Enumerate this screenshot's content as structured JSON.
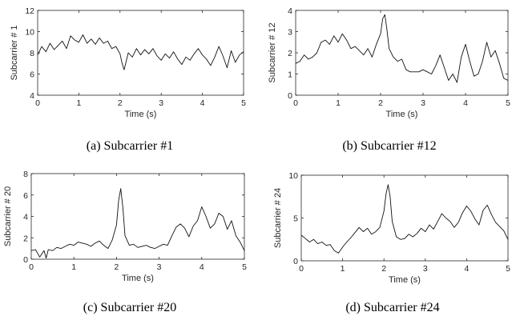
{
  "chart_data": [
    {
      "type": "line",
      "caption": "(a) Subcarrier #1",
      "xlabel": "Time (s)",
      "ylabel": "Subcarrier # 1",
      "xlim": [
        0,
        5
      ],
      "ylim": [
        4,
        12
      ],
      "xticks": [
        0,
        1,
        2,
        3,
        4,
        5
      ],
      "yticks": [
        4,
        6,
        8,
        10,
        12
      ],
      "series": [
        {
          "x": [
            0,
            0.1,
            0.2,
            0.3,
            0.4,
            0.5,
            0.6,
            0.7,
            0.8,
            0.9,
            1.0,
            1.1,
            1.2,
            1.3,
            1.4,
            1.5,
            1.6,
            1.7,
            1.8,
            1.9,
            2.0,
            2.05,
            2.1,
            2.15,
            2.2,
            2.3,
            2.4,
            2.5,
            2.6,
            2.7,
            2.8,
            2.9,
            3.0,
            3.1,
            3.2,
            3.3,
            3.4,
            3.5,
            3.6,
            3.7,
            3.8,
            3.9,
            4.0,
            4.1,
            4.2,
            4.3,
            4.4,
            4.5,
            4.6,
            4.7,
            4.8,
            4.9,
            5.0
          ],
          "y": [
            7.8,
            8.6,
            8.1,
            8.9,
            8.3,
            8.7,
            9.1,
            8.4,
            9.6,
            9.2,
            9.0,
            9.7,
            8.9,
            9.3,
            8.8,
            9.4,
            8.9,
            9.1,
            8.4,
            8.6,
            7.9,
            7.0,
            6.4,
            7.2,
            8.0,
            7.6,
            8.4,
            7.8,
            8.3,
            7.9,
            8.4,
            7.7,
            7.3,
            7.9,
            7.5,
            8.1,
            7.4,
            6.9,
            7.6,
            7.3,
            7.9,
            8.4,
            7.8,
            7.4,
            6.8,
            7.6,
            8.6,
            7.7,
            6.6,
            8.2,
            7.1,
            7.8,
            8.1
          ]
        }
      ]
    },
    {
      "type": "line",
      "caption": "(b) Subcarrier #12",
      "xlabel": "Time (s)",
      "ylabel": "Subcarrier # 12",
      "xlim": [
        0,
        5
      ],
      "ylim": [
        0,
        4
      ],
      "xticks": [
        0,
        1,
        2,
        3,
        4,
        5
      ],
      "yticks": [
        0,
        1,
        2,
        3,
        4
      ],
      "series": [
        {
          "x": [
            0,
            0.1,
            0.2,
            0.3,
            0.4,
            0.5,
            0.6,
            0.7,
            0.8,
            0.9,
            1.0,
            1.1,
            1.2,
            1.3,
            1.4,
            1.5,
            1.6,
            1.7,
            1.8,
            1.9,
            2.0,
            2.05,
            2.1,
            2.15,
            2.2,
            2.3,
            2.4,
            2.5,
            2.6,
            2.7,
            2.8,
            2.9,
            3.0,
            3.1,
            3.2,
            3.3,
            3.4,
            3.5,
            3.6,
            3.7,
            3.8,
            3.9,
            4.0,
            4.1,
            4.2,
            4.3,
            4.4,
            4.5,
            4.6,
            4.7,
            4.8,
            4.9,
            5.0
          ],
          "y": [
            1.5,
            1.6,
            1.9,
            1.7,
            1.8,
            2.0,
            2.5,
            2.6,
            2.4,
            2.8,
            2.5,
            2.9,
            2.6,
            2.2,
            2.3,
            2.1,
            1.9,
            2.2,
            1.8,
            2.4,
            2.9,
            3.6,
            3.8,
            3.1,
            2.2,
            1.8,
            1.6,
            1.7,
            1.2,
            1.1,
            1.1,
            1.1,
            1.2,
            1.1,
            1.0,
            1.4,
            1.9,
            1.3,
            0.7,
            1.0,
            0.6,
            1.8,
            2.4,
            1.6,
            0.9,
            1.0,
            1.6,
            2.5,
            1.8,
            2.1,
            1.5,
            0.8,
            0.7
          ]
        }
      ]
    },
    {
      "type": "line",
      "caption": "(c) Subcarrier #20",
      "xlabel": "Time (s)",
      "ylabel": "Subcarrier # 20",
      "xlim": [
        0,
        5
      ],
      "ylim": [
        0,
        8
      ],
      "xticks": [
        0,
        1,
        2,
        3,
        4,
        5
      ],
      "yticks": [
        0,
        2,
        4,
        6,
        8
      ],
      "series": [
        {
          "x": [
            0,
            0.1,
            0.2,
            0.3,
            0.35,
            0.4,
            0.5,
            0.6,
            0.7,
            0.8,
            0.9,
            1.0,
            1.1,
            1.2,
            1.3,
            1.4,
            1.5,
            1.6,
            1.7,
            1.8,
            1.9,
            2.0,
            2.05,
            2.1,
            2.15,
            2.2,
            2.3,
            2.4,
            2.5,
            2.6,
            2.7,
            2.8,
            2.9,
            3.0,
            3.1,
            3.2,
            3.3,
            3.4,
            3.5,
            3.6,
            3.7,
            3.8,
            3.9,
            4.0,
            4.1,
            4.2,
            4.3,
            4.4,
            4.5,
            4.6,
            4.7,
            4.8,
            4.9,
            5.0
          ],
          "y": [
            0.8,
            0.9,
            0.2,
            0.8,
            0.1,
            0.9,
            0.8,
            1.1,
            1.0,
            1.2,
            1.4,
            1.3,
            1.6,
            1.5,
            1.4,
            1.2,
            1.5,
            1.7,
            1.3,
            1.0,
            1.8,
            3.2,
            5.5,
            6.6,
            4.8,
            2.2,
            1.3,
            1.4,
            1.1,
            1.2,
            1.3,
            1.1,
            1.0,
            1.2,
            1.4,
            1.3,
            2.2,
            3.0,
            3.3,
            2.9,
            2.1,
            3.1,
            3.6,
            4.9,
            4.0,
            2.9,
            3.3,
            4.3,
            4.0,
            2.8,
            3.6,
            2.2,
            1.6,
            0.8
          ]
        }
      ]
    },
    {
      "type": "line",
      "caption": "(d) Subcarrier #24",
      "xlabel": "Time (s)",
      "ylabel": "Subcarrier # 24",
      "xlim": [
        0,
        5
      ],
      "ylim": [
        0,
        10
      ],
      "xticks": [
        0,
        1,
        2,
        3,
        4,
        5
      ],
      "yticks": [
        0,
        5,
        10
      ],
      "series": [
        {
          "x": [
            0,
            0.1,
            0.2,
            0.3,
            0.4,
            0.5,
            0.6,
            0.7,
            0.8,
            0.9,
            1.0,
            1.1,
            1.2,
            1.3,
            1.4,
            1.5,
            1.6,
            1.7,
            1.8,
            1.9,
            2.0,
            2.05,
            2.1,
            2.15,
            2.2,
            2.3,
            2.4,
            2.5,
            2.6,
            2.7,
            2.8,
            2.9,
            3.0,
            3.1,
            3.2,
            3.3,
            3.4,
            3.5,
            3.6,
            3.7,
            3.8,
            3.9,
            4.0,
            4.1,
            4.2,
            4.3,
            4.4,
            4.5,
            4.6,
            4.7,
            4.8,
            4.9,
            5.0
          ],
          "y": [
            3.0,
            2.6,
            2.2,
            2.5,
            2.0,
            2.2,
            1.8,
            1.9,
            1.2,
            0.9,
            1.6,
            2.2,
            2.7,
            3.3,
            3.9,
            3.4,
            3.8,
            3.1,
            3.4,
            3.9,
            5.8,
            7.8,
            8.9,
            7.5,
            4.6,
            2.8,
            2.5,
            2.6,
            3.1,
            2.8,
            3.2,
            3.8,
            3.4,
            4.2,
            3.7,
            4.6,
            5.5,
            5.0,
            4.6,
            3.9,
            4.5,
            5.6,
            6.4,
            5.8,
            4.9,
            4.2,
            5.9,
            6.5,
            5.4,
            4.5,
            4.0,
            3.5,
            2.5
          ]
        }
      ]
    }
  ]
}
